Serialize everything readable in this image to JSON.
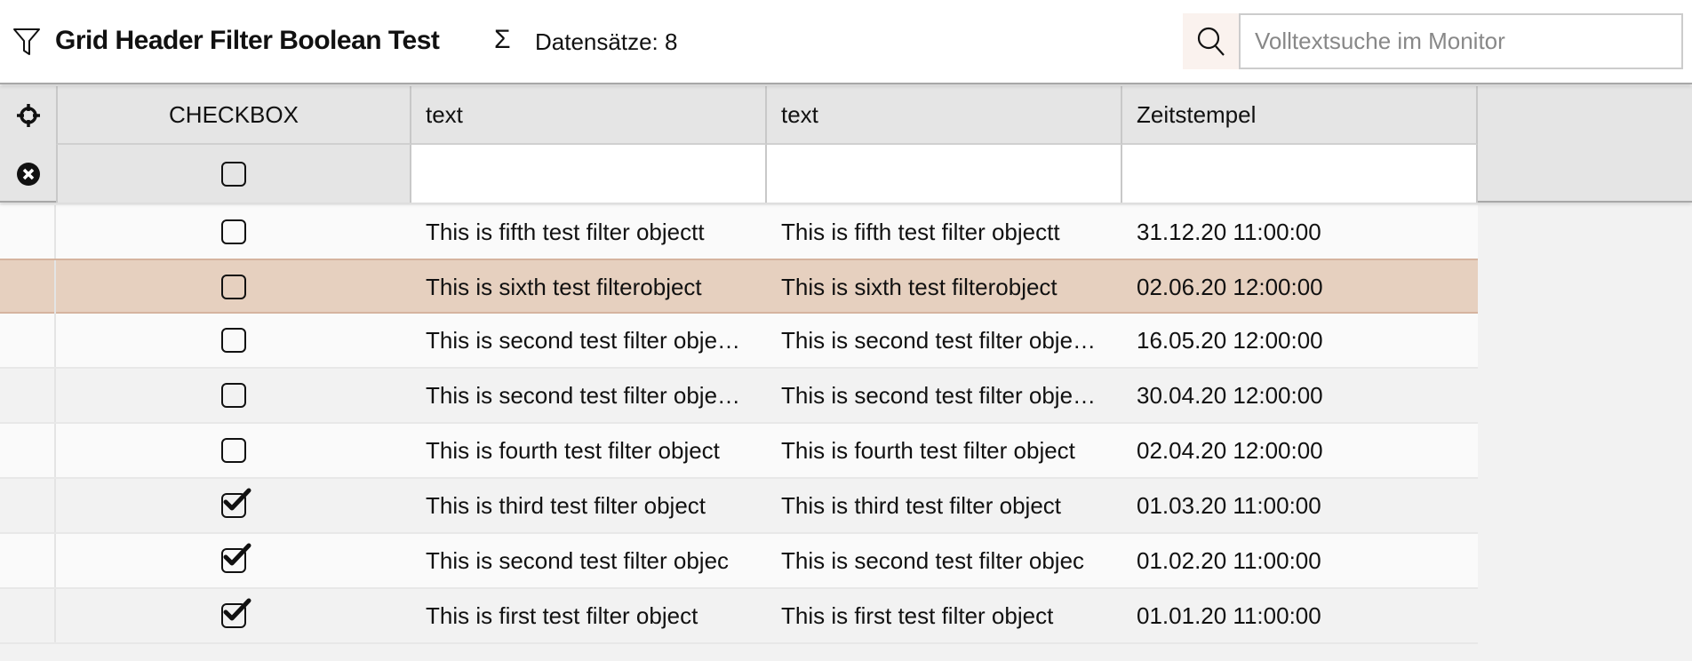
{
  "header": {
    "title": "Grid Header Filter Boolean Test",
    "record_count": "Datensätze: 8",
    "sigma": "Σ",
    "search_placeholder": "Volltextsuche im Monitor",
    "search_value": ""
  },
  "columns": [
    "CHECKBOX",
    "text",
    "text",
    "Zeitstempel"
  ],
  "filter": {
    "checkbox_checked": false,
    "text1": "",
    "text2": "",
    "timestamp": ""
  },
  "accent": {
    "selected_row": "#e6d0bf",
    "search_button_bg": "#faf2ee"
  },
  "rows": [
    {
      "checked": false,
      "text1": "This is fifth test filter objectt",
      "text2": "This is fifth test filter objectt",
      "ts": "31.12.20 11:00:00",
      "selected": false
    },
    {
      "checked": false,
      "text1": "This is sixth test filterobject",
      "text2": "This is sixth test filterobject",
      "ts": "02.06.20 12:00:00",
      "selected": true
    },
    {
      "checked": false,
      "text1": "This is second test filter obje…",
      "text2": "This is second test filter obje…",
      "ts": "16.05.20 12:00:00",
      "selected": false
    },
    {
      "checked": false,
      "text1": "This is second test filter obje…",
      "text2": "This is second test filter obje…",
      "ts": "30.04.20 12:00:00",
      "selected": false
    },
    {
      "checked": false,
      "text1": "This is fourth test filter object",
      "text2": "This is fourth test filter object",
      "ts": "02.04.20 12:00:00",
      "selected": false
    },
    {
      "checked": true,
      "text1": "This is third test filter object",
      "text2": "This is third test filter object",
      "ts": "01.03.20 11:00:00",
      "selected": false
    },
    {
      "checked": true,
      "text1": "This is second test filter objec",
      "text2": "This is second test filter objec",
      "ts": "01.02.20 11:00:00",
      "selected": false
    },
    {
      "checked": true,
      "text1": "This is first test filter object",
      "text2": "This is first test filter object",
      "ts": "01.01.20 11:00:00",
      "selected": false
    }
  ]
}
